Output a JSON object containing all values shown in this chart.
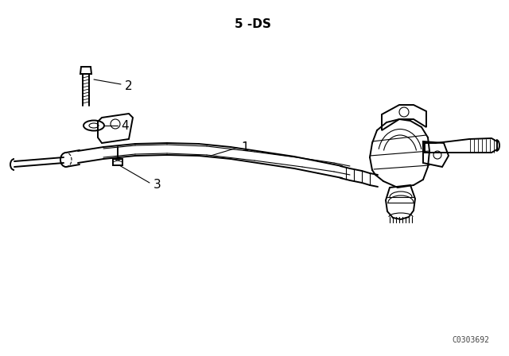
{
  "title": "5 -DS",
  "catalog_number": "C0303692",
  "background_color": "#ffffff",
  "line_color": "#000000",
  "title_fontsize": 11,
  "catalog_fontsize": 7,
  "label_fontsize": 11
}
